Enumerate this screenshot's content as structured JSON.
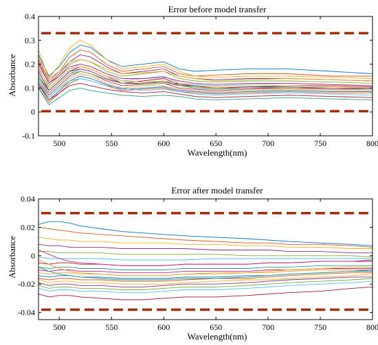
{
  "chart_data": [
    {
      "type": "line",
      "title": "Error before model transfer",
      "xlabel": "Wavelength(nm)",
      "ylabel": "Absorbance",
      "xlim": [
        480,
        800
      ],
      "ylim": [
        -0.1,
        0.4
      ],
      "xticks": [
        500,
        550,
        600,
        650,
        700,
        750,
        800
      ],
      "yticks": [
        -0.1,
        0,
        0.1,
        0.2,
        0.3,
        0.4
      ],
      "grid": false,
      "threshold_lines": [
        0.33,
        0.003
      ],
      "threshold_color": "#a52a0a",
      "series_x": [
        480,
        490,
        500,
        510,
        520,
        530,
        545,
        560,
        580,
        600,
        615,
        630,
        650,
        680,
        720,
        760,
        800
      ],
      "series": [
        {
          "values": [
            0.24,
            0.15,
            0.19,
            0.25,
            0.28,
            0.27,
            0.22,
            0.19,
            0.2,
            0.21,
            0.18,
            0.17,
            0.175,
            0.18,
            0.18,
            0.17,
            0.16
          ]
        },
        {
          "values": [
            0.22,
            0.13,
            0.17,
            0.23,
            0.26,
            0.25,
            0.2,
            0.17,
            0.18,
            0.19,
            0.16,
            0.15,
            0.155,
            0.16,
            0.16,
            0.15,
            0.15
          ]
        },
        {
          "values": [
            0.26,
            0.14,
            0.2,
            0.27,
            0.3,
            0.28,
            0.22,
            0.18,
            0.19,
            0.2,
            0.17,
            0.15,
            0.145,
            0.15,
            0.15,
            0.145,
            0.14
          ]
        },
        {
          "values": [
            0.2,
            0.12,
            0.16,
            0.21,
            0.24,
            0.23,
            0.19,
            0.16,
            0.17,
            0.18,
            0.15,
            0.14,
            0.135,
            0.14,
            0.14,
            0.135,
            0.13
          ]
        },
        {
          "values": [
            0.18,
            0.11,
            0.15,
            0.2,
            0.22,
            0.21,
            0.17,
            0.15,
            0.16,
            0.17,
            0.14,
            0.13,
            0.125,
            0.13,
            0.13,
            0.125,
            0.12
          ]
        },
        {
          "values": [
            0.16,
            0.1,
            0.14,
            0.18,
            0.2,
            0.19,
            0.16,
            0.13,
            0.14,
            0.15,
            0.12,
            0.115,
            0.11,
            0.115,
            0.12,
            0.115,
            0.11
          ]
        },
        {
          "values": [
            0.15,
            0.09,
            0.13,
            0.17,
            0.19,
            0.18,
            0.15,
            0.12,
            0.13,
            0.14,
            0.115,
            0.105,
            0.1,
            0.105,
            0.11,
            0.11,
            0.105
          ]
        },
        {
          "values": [
            0.14,
            0.08,
            0.12,
            0.16,
            0.18,
            0.17,
            0.14,
            0.12,
            0.12,
            0.13,
            0.11,
            0.1,
            0.095,
            0.1,
            0.105,
            0.1,
            0.1
          ]
        },
        {
          "values": [
            0.13,
            0.07,
            0.11,
            0.15,
            0.17,
            0.16,
            0.13,
            0.11,
            0.115,
            0.12,
            0.1,
            0.095,
            0.09,
            0.095,
            0.1,
            0.095,
            0.095
          ]
        },
        {
          "values": [
            0.12,
            0.06,
            0.1,
            0.14,
            0.16,
            0.15,
            0.12,
            0.1,
            0.11,
            0.11,
            0.095,
            0.09,
            0.085,
            0.09,
            0.095,
            0.09,
            0.09
          ]
        },
        {
          "values": [
            0.11,
            0.05,
            0.09,
            0.13,
            0.15,
            0.14,
            0.115,
            0.095,
            0.1,
            0.105,
            0.09,
            0.085,
            0.08,
            0.085,
            0.09,
            0.085,
            0.085
          ]
        },
        {
          "values": [
            0.1,
            0.04,
            0.08,
            0.12,
            0.14,
            0.13,
            0.11,
            0.09,
            0.095,
            0.1,
            0.085,
            0.08,
            0.075,
            0.08,
            0.085,
            0.08,
            0.08
          ]
        },
        {
          "values": [
            0.19,
            0.1,
            0.14,
            0.18,
            0.19,
            0.18,
            0.15,
            0.13,
            0.125,
            0.13,
            0.12,
            0.11,
            0.105,
            0.11,
            0.11,
            0.105,
            0.1
          ]
        },
        {
          "values": [
            0.17,
            0.09,
            0.13,
            0.17,
            0.18,
            0.17,
            0.14,
            0.12,
            0.12,
            0.125,
            0.115,
            0.11,
            0.1,
            0.105,
            0.105,
            0.1,
            0.1
          ]
        },
        {
          "values": [
            0.15,
            0.08,
            0.12,
            0.16,
            0.17,
            0.16,
            0.135,
            0.12,
            0.115,
            0.12,
            0.11,
            0.105,
            0.1,
            0.1,
            0.1,
            0.1,
            0.095
          ]
        },
        {
          "values": [
            0.13,
            0.06,
            0.1,
            0.13,
            0.14,
            0.13,
            0.11,
            0.1,
            0.09,
            0.095,
            0.085,
            0.075,
            0.07,
            0.075,
            0.08,
            0.075,
            0.07
          ]
        },
        {
          "values": [
            0.12,
            0.05,
            0.08,
            0.11,
            0.12,
            0.11,
            0.095,
            0.085,
            0.08,
            0.085,
            0.075,
            0.065,
            0.06,
            0.065,
            0.07,
            0.065,
            0.06
          ]
        },
        {
          "values": [
            0.1,
            0.03,
            0.06,
            0.09,
            0.1,
            0.09,
            0.08,
            0.07,
            0.065,
            0.07,
            0.065,
            0.055,
            0.05,
            0.055,
            0.06,
            0.055,
            0.05
          ]
        },
        {
          "values": [
            0.21,
            0.12,
            0.15,
            0.19,
            0.2,
            0.19,
            0.16,
            0.14,
            0.14,
            0.145,
            0.13,
            0.12,
            0.115,
            0.12,
            0.12,
            0.115,
            0.11
          ]
        },
        {
          "values": [
            0.23,
            0.14,
            0.17,
            0.21,
            0.22,
            0.21,
            0.18,
            0.16,
            0.165,
            0.17,
            0.15,
            0.14,
            0.13,
            0.135,
            0.14,
            0.135,
            0.13
          ]
        }
      ]
    },
    {
      "type": "line",
      "title": "Error after model transfer",
      "xlabel": "Wavelength(nm)",
      "ylabel": "Absorbance",
      "xlim": [
        480,
        800
      ],
      "ylim": [
        -0.045,
        0.04
      ],
      "xticks": [
        500,
        550,
        600,
        650,
        700,
        750,
        800
      ],
      "yticks": [
        -0.04,
        -0.02,
        0,
        0.02,
        0.04
      ],
      "grid": false,
      "threshold_lines": [
        0.03,
        -0.038
      ],
      "threshold_color": "#a52a0a",
      "series_x": [
        480,
        490,
        500,
        510,
        520,
        540,
        560,
        580,
        600,
        620,
        650,
        680,
        700,
        720,
        750,
        780,
        800
      ],
      "series": [
        {
          "values": [
            0.022,
            0.024,
            0.024,
            0.023,
            0.021,
            0.019,
            0.017,
            0.016,
            0.015,
            0.014,
            0.013,
            0.012,
            0.011,
            0.01,
            0.009,
            0.008,
            0.007
          ]
        },
        {
          "values": [
            0.02,
            0.019,
            0.018,
            0.017,
            0.016,
            0.015,
            0.014,
            0.013,
            0.012,
            0.011,
            0.01,
            0.009,
            0.009,
            0.008,
            0.008,
            0.007,
            0.006
          ]
        },
        {
          "values": [
            0.013,
            0.012,
            0.011,
            0.011,
            0.01,
            0.01,
            0.009,
            0.009,
            0.009,
            0.008,
            0.008,
            0.007,
            0.007,
            0.006,
            0.006,
            0.005,
            0.005
          ]
        },
        {
          "values": [
            0.008,
            0.007,
            0.007,
            0.006,
            0.006,
            0.006,
            0.005,
            0.005,
            0.005,
            0.005,
            0.004,
            0.004,
            0.004,
            0.003,
            0.003,
            0.002,
            0.002
          ]
        },
        {
          "values": [
            0.003,
            0.003,
            0.002,
            0.002,
            0.002,
            0.002,
            0.001,
            0.001,
            0.001,
            0.001,
            0.001,
            0.0,
            0.0,
            0.0,
            0.0,
            0.0,
            -0.001
          ]
        },
        {
          "values": [
            -0.001,
            -0.002,
            -0.002,
            -0.002,
            -0.002,
            -0.002,
            -0.003,
            -0.003,
            -0.003,
            -0.003,
            -0.002,
            -0.002,
            -0.002,
            -0.002,
            -0.002,
            -0.002,
            -0.002
          ]
        },
        {
          "values": [
            -0.005,
            -0.006,
            -0.005,
            -0.005,
            -0.006,
            -0.006,
            -0.007,
            -0.007,
            -0.007,
            -0.006,
            -0.006,
            -0.006,
            -0.005,
            -0.005,
            -0.004,
            -0.004,
            -0.004
          ]
        },
        {
          "values": [
            -0.008,
            -0.009,
            -0.008,
            -0.008,
            -0.009,
            -0.009,
            -0.01,
            -0.01,
            -0.01,
            -0.009,
            -0.009,
            -0.009,
            -0.008,
            -0.008,
            -0.007,
            -0.007,
            -0.007
          ]
        },
        {
          "values": [
            -0.01,
            -0.011,
            -0.01,
            -0.01,
            -0.011,
            -0.011,
            -0.012,
            -0.012,
            -0.012,
            -0.011,
            -0.011,
            -0.011,
            -0.01,
            -0.01,
            -0.009,
            -0.009,
            -0.009
          ]
        },
        {
          "values": [
            -0.012,
            -0.013,
            -0.012,
            -0.012,
            -0.013,
            -0.013,
            -0.014,
            -0.014,
            -0.014,
            -0.013,
            -0.013,
            -0.012,
            -0.012,
            -0.011,
            -0.01,
            -0.01,
            -0.01
          ]
        },
        {
          "values": [
            -0.014,
            -0.015,
            -0.014,
            -0.014,
            -0.015,
            -0.015,
            -0.016,
            -0.016,
            -0.016,
            -0.015,
            -0.015,
            -0.014,
            -0.014,
            -0.013,
            -0.012,
            -0.011,
            -0.011
          ]
        },
        {
          "values": [
            -0.016,
            -0.017,
            -0.016,
            -0.016,
            -0.017,
            -0.017,
            -0.018,
            -0.018,
            -0.018,
            -0.017,
            -0.016,
            -0.016,
            -0.015,
            -0.014,
            -0.013,
            -0.012,
            -0.012
          ]
        },
        {
          "values": [
            -0.017,
            -0.019,
            -0.018,
            -0.018,
            -0.019,
            -0.019,
            -0.02,
            -0.02,
            -0.02,
            -0.019,
            -0.018,
            -0.017,
            -0.017,
            -0.016,
            -0.015,
            -0.014,
            -0.013
          ]
        },
        {
          "values": [
            -0.019,
            -0.021,
            -0.02,
            -0.02,
            -0.021,
            -0.021,
            -0.022,
            -0.022,
            -0.021,
            -0.02,
            -0.02,
            -0.019,
            -0.018,
            -0.017,
            -0.016,
            -0.015,
            -0.015
          ]
        },
        {
          "values": [
            -0.021,
            -0.023,
            -0.022,
            -0.022,
            -0.023,
            -0.023,
            -0.024,
            -0.024,
            -0.023,
            -0.022,
            -0.022,
            -0.021,
            -0.02,
            -0.019,
            -0.018,
            -0.017,
            -0.016
          ]
        },
        {
          "values": [
            -0.023,
            -0.025,
            -0.024,
            -0.024,
            -0.025,
            -0.025,
            -0.026,
            -0.026,
            -0.025,
            -0.024,
            -0.024,
            -0.023,
            -0.022,
            -0.021,
            -0.02,
            -0.019,
            -0.018
          ]
        },
        {
          "values": [
            -0.027,
            -0.029,
            -0.028,
            -0.028,
            -0.029,
            -0.03,
            -0.031,
            -0.031,
            -0.03,
            -0.029,
            -0.029,
            -0.028,
            -0.027,
            -0.026,
            -0.025,
            -0.023,
            -0.022
          ]
        },
        {
          "values": [
            -0.008,
            -0.011,
            -0.013,
            -0.014,
            -0.015,
            -0.016,
            -0.017,
            -0.017,
            -0.017,
            -0.016,
            -0.016,
            -0.015,
            -0.014,
            -0.013,
            -0.012,
            -0.011,
            -0.01
          ]
        },
        {
          "values": [
            0.004,
            0.001,
            -0.002,
            -0.004,
            -0.005,
            -0.006,
            -0.007,
            -0.007,
            -0.007,
            -0.006,
            -0.006,
            -0.006,
            -0.005,
            -0.005,
            -0.004,
            -0.004,
            -0.003
          ]
        },
        {
          "values": [
            -0.003,
            -0.006,
            -0.009,
            -0.011,
            -0.012,
            -0.013,
            -0.014,
            -0.014,
            -0.014,
            -0.013,
            -0.012,
            -0.012,
            -0.011,
            -0.01,
            -0.009,
            -0.008,
            -0.008
          ]
        }
      ]
    }
  ],
  "palette": [
    "#0072bd",
    "#d95319",
    "#edb120",
    "#7e2f8e",
    "#77ac30",
    "#4dbeee",
    "#a2142f",
    "#1f9e89",
    "#c51b7d",
    "#e6a023"
  ]
}
